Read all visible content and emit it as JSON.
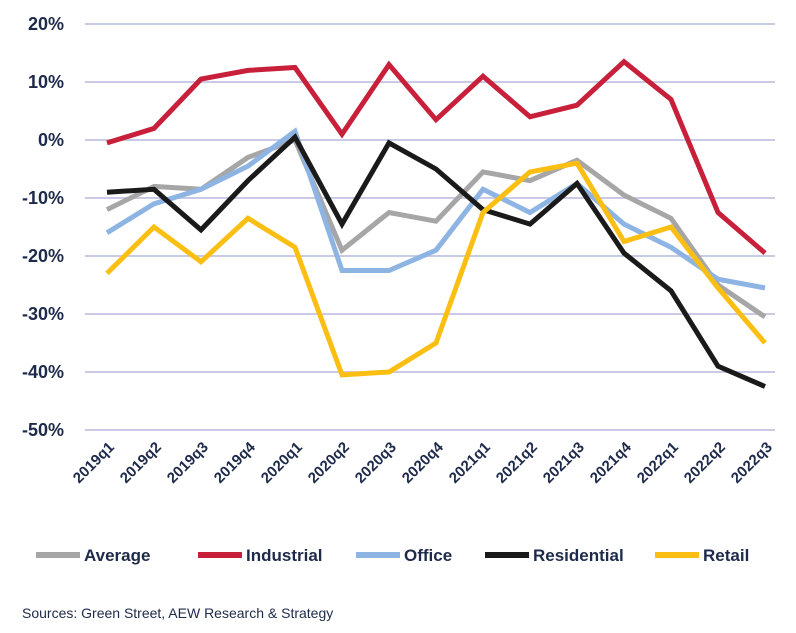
{
  "chart_data": {
    "type": "line",
    "categories": [
      "2019q1",
      "2019q2",
      "2019q3",
      "2019q4",
      "2020q1",
      "2020q2",
      "2020q3",
      "2020q4",
      "2021q1",
      "2021q2",
      "2021q3",
      "2021q4",
      "2022q1",
      "2022q2",
      "2022q3"
    ],
    "ylim": [
      -50,
      20
    ],
    "yticks": [
      20,
      10,
      0,
      -10,
      -20,
      -30,
      -40,
      -50
    ],
    "ytick_labels": [
      "20%",
      "10%",
      "0%",
      "-10%",
      "-20%",
      "-30%",
      "-40%",
      "-50%"
    ],
    "grid": true,
    "legend_position": "bottom",
    "series": [
      {
        "name": "Average",
        "color": "#a6a6a6",
        "values": [
          -12,
          -8,
          -8.5,
          -3,
          0,
          -19,
          -12.5,
          -14,
          -5.5,
          -7,
          -3.5,
          -9.5,
          -13.5,
          -25,
          -30.5
        ]
      },
      {
        "name": "Industrial",
        "color": "#c8203a",
        "values": [
          -0.5,
          2,
          10.5,
          12,
          12.5,
          1,
          13,
          3.5,
          11,
          4,
          6,
          13.5,
          7,
          -12.5,
          -19.5
        ]
      },
      {
        "name": "Office",
        "color": "#8db4e2",
        "values": [
          -16,
          -11,
          -8.5,
          -4.5,
          1.5,
          -22.5,
          -22.5,
          -19,
          -8.5,
          -12.5,
          -7.5,
          -14.5,
          -18.5,
          -24,
          -25.5
        ]
      },
      {
        "name": "Residential",
        "color": "#1a1a1a",
        "values": [
          -9,
          -8.5,
          -15.5,
          -7,
          0.5,
          -14.5,
          -0.5,
          -5,
          -12,
          -14.5,
          -7.5,
          -19.5,
          -26,
          -39,
          -42.5
        ]
      },
      {
        "name": "Retail",
        "color": "#fbbf14",
        "values": [
          -23,
          -15,
          -21,
          -13.5,
          -18.5,
          -40.5,
          -40,
          -35,
          -12.5,
          -5.5,
          -4,
          -17.5,
          -15,
          -25.5,
          -35
        ]
      }
    ]
  },
  "source_text": "Sources: Green Street, AEW Research & Strategy"
}
